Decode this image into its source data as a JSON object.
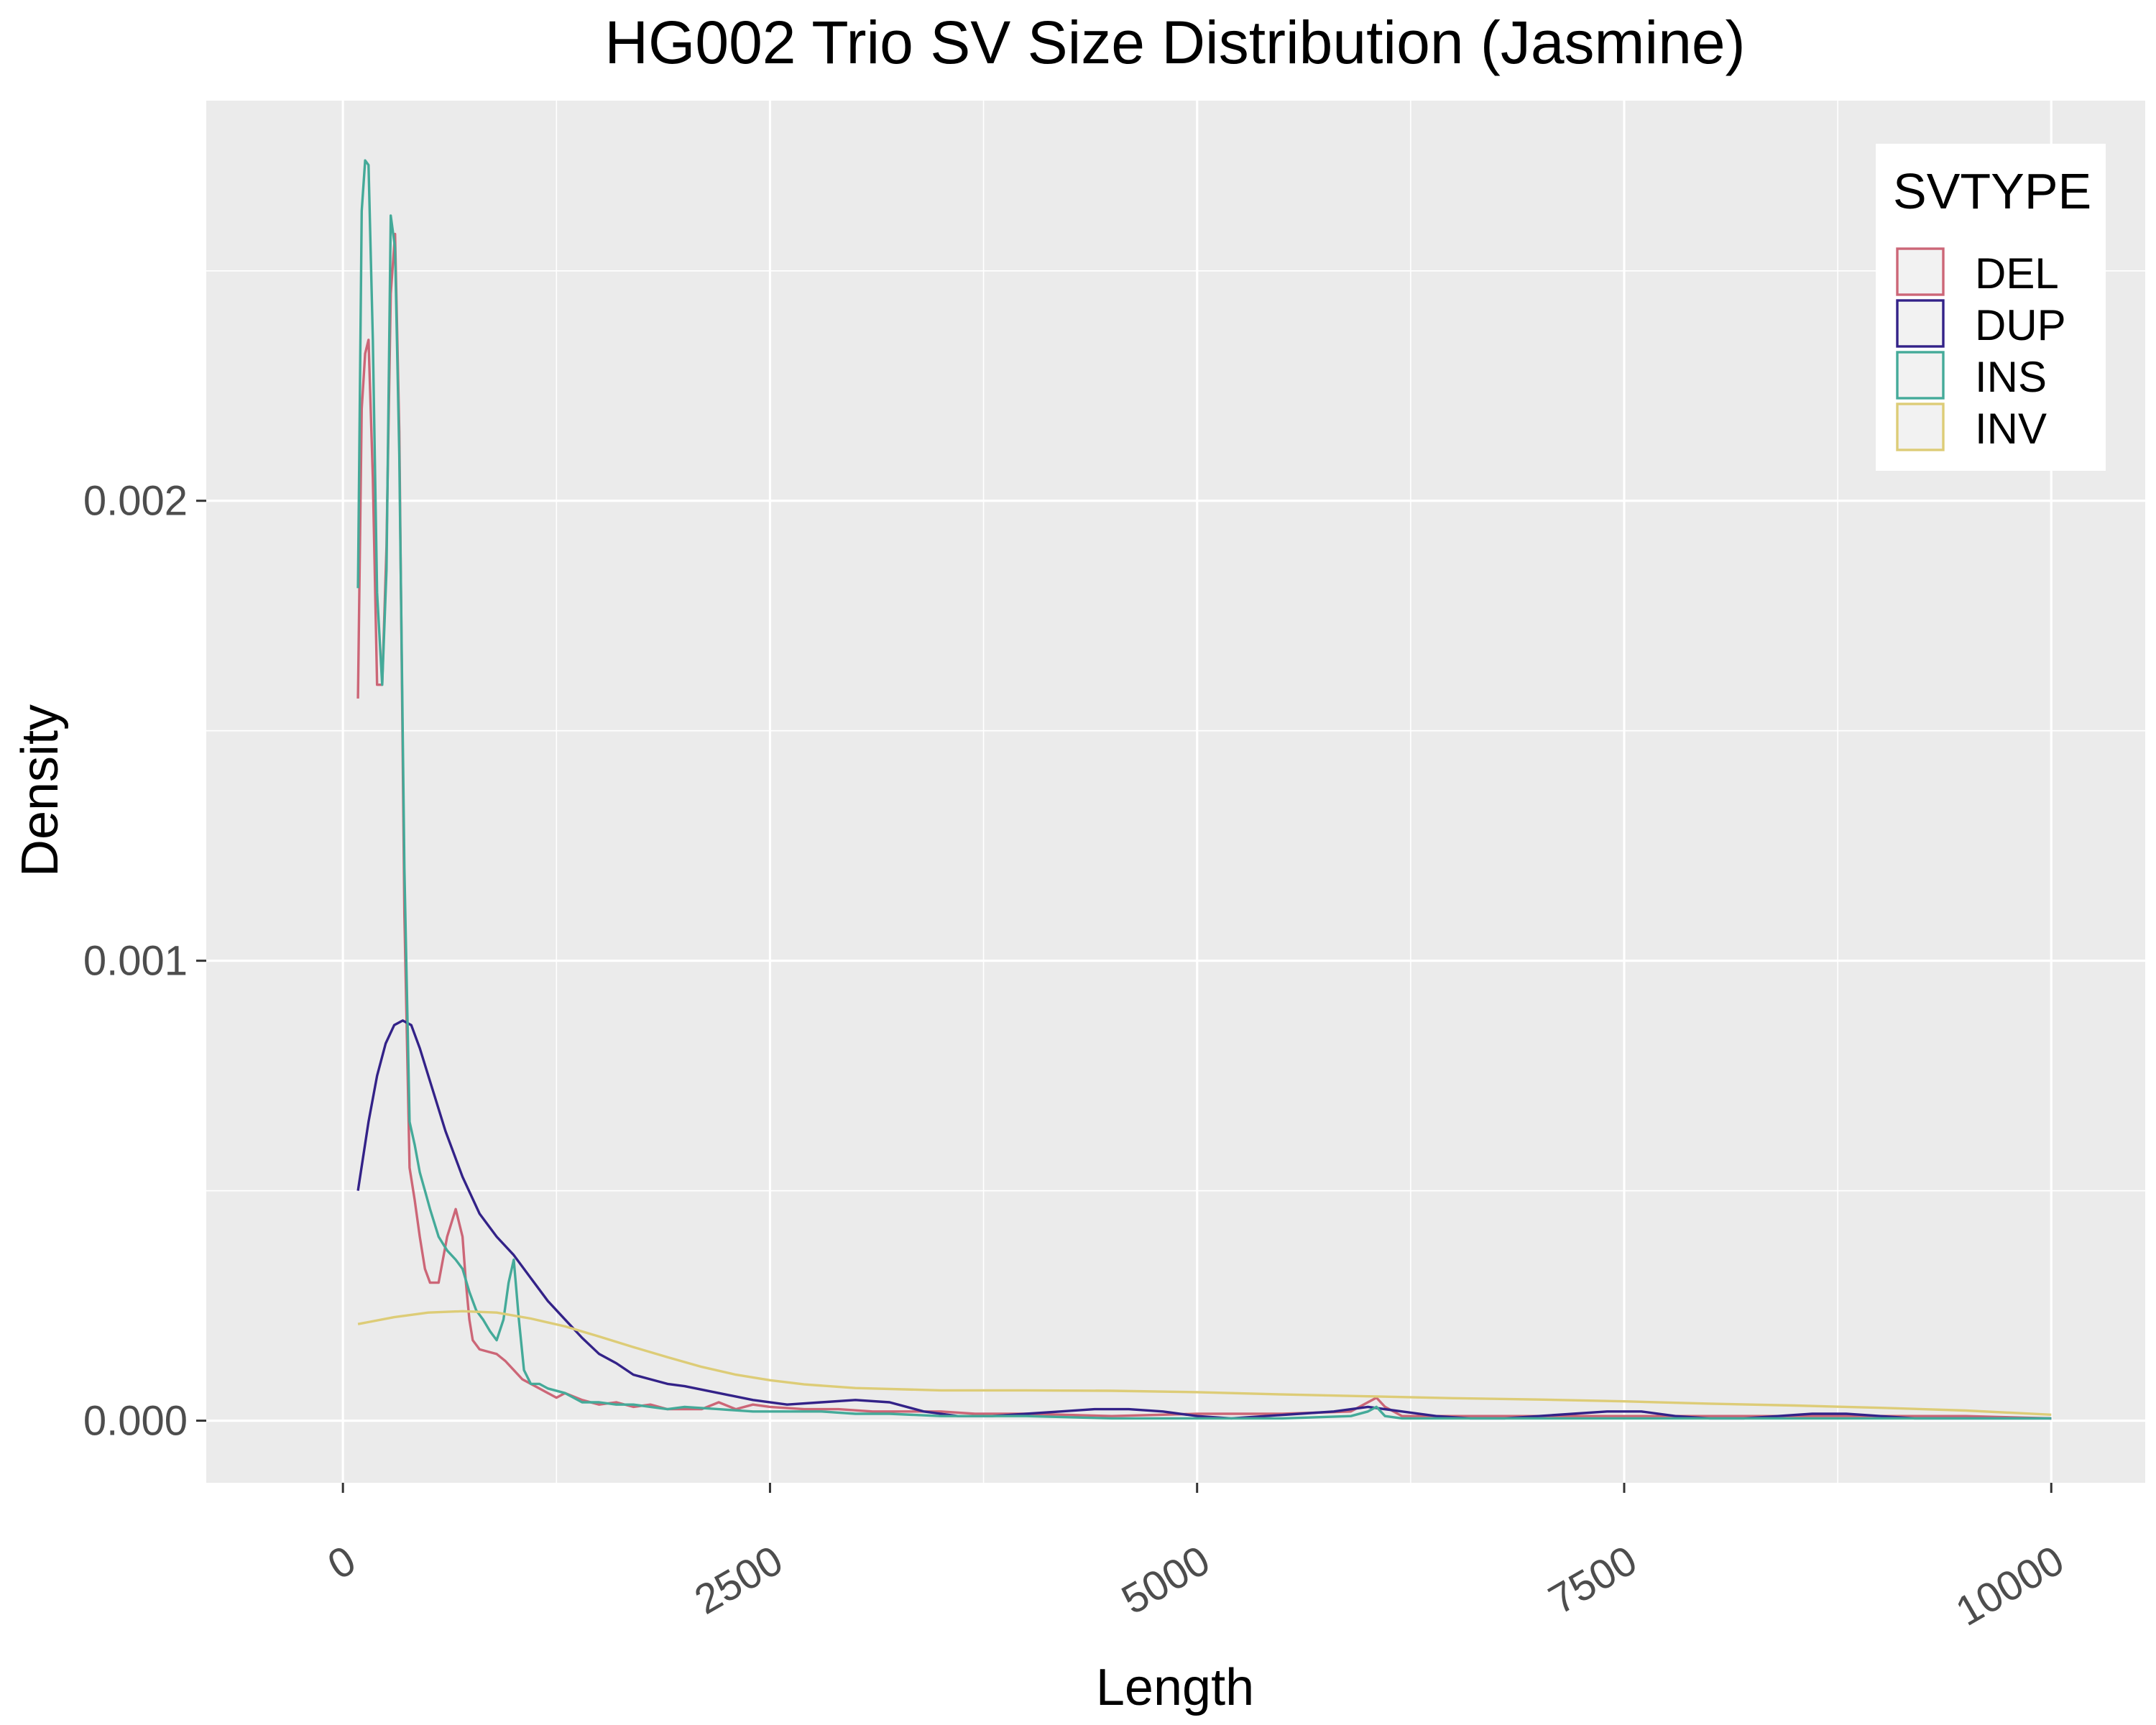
{
  "chart_data": {
    "type": "line",
    "title": "HG002 Trio SV Size Distribution (Jasmine)",
    "xlabel": "Length",
    "ylabel": "Density",
    "xlim": [
      -800,
      10550
    ],
    "ylim": [
      -0.000135,
      0.00287
    ],
    "x_ticks": [
      0,
      2500,
      5000,
      7500,
      10000
    ],
    "x_tick_labels": [
      "0",
      "2500",
      "5000",
      "7500",
      "10000"
    ],
    "y_ticks": [
      0.0,
      0.001,
      0.002
    ],
    "y_tick_labels": [
      "0.000",
      "0.001",
      "0.002"
    ],
    "grid": true,
    "legend": {
      "title": "SVTYPE",
      "position": "top-right"
    },
    "series": [
      {
        "name": "DEL",
        "color": "#cc6677",
        "x": [
          88,
          110,
          130,
          150,
          175,
          200,
          230,
          255,
          280,
          305,
          330,
          360,
          390,
          420,
          450,
          480,
          510,
          560,
          610,
          660,
          700,
          720,
          740,
          760,
          800,
          850,
          900,
          950,
          1000,
          1050,
          1100,
          1150,
          1200,
          1250,
          1300,
          1400,
          1500,
          1600,
          1700,
          1800,
          1900,
          2000,
          2100,
          2200,
          2300,
          2400,
          2500,
          2700,
          2900,
          3100,
          3300,
          3500,
          3700,
          4000,
          4500,
          5000,
          5500,
          5900,
          6000,
          6050,
          6100,
          6200,
          6500,
          7000,
          7500,
          8000,
          8500,
          9000,
          9500,
          10000
        ],
        "y": [
          0.00157,
          0.0022,
          0.00232,
          0.00235,
          0.00205,
          0.0016,
          0.0016,
          0.0019,
          0.00245,
          0.00258,
          0.00215,
          0.0011,
          0.00055,
          0.00048,
          0.0004,
          0.00033,
          0.0003,
          0.0003,
          0.0004,
          0.00046,
          0.0004,
          0.0003,
          0.00022,
          0.000175,
          0.000155,
          0.00015,
          0.000145,
          0.00013,
          0.00011,
          9e-05,
          8e-05,
          7e-05,
          6e-05,
          5e-05,
          6e-05,
          4.5e-05,
          3.5e-05,
          4e-05,
          3e-05,
          3.5e-05,
          2.5e-05,
          2.5e-05,
          2.5e-05,
          4e-05,
          2.5e-05,
          3.5e-05,
          3e-05,
          2.5e-05,
          2.5e-05,
          2e-05,
          2e-05,
          2e-05,
          1.5e-05,
          1.5e-05,
          1e-05,
          1.5e-05,
          1.5e-05,
          2e-05,
          4e-05,
          5e-05,
          3e-05,
          1e-05,
          1e-05,
          1e-05,
          1e-05,
          1e-05,
          1e-05,
          1e-05,
          1e-05,
          5e-06
        ]
      },
      {
        "name": "DUP",
        "color": "#332288",
        "x": [
          88,
          150,
          200,
          250,
          300,
          350,
          400,
          450,
          500,
          600,
          700,
          800,
          900,
          1000,
          1100,
          1200,
          1300,
          1400,
          1500,
          1600,
          1700,
          1800,
          1900,
          2000,
          2200,
          2400,
          2600,
          2800,
          3000,
          3200,
          3400,
          3600,
          3800,
          4000,
          4200,
          4400,
          4600,
          4800,
          5000,
          5200,
          5400,
          5600,
          5800,
          6000,
          6200,
          6400,
          6600,
          6800,
          7000,
          7200,
          7400,
          7600,
          7800,
          8000,
          8200,
          8400,
          8600,
          8800,
          9000,
          9200,
          9400,
          9600,
          9800,
          10000
        ],
        "y": [
          0.0005,
          0.00065,
          0.00075,
          0.00082,
          0.00086,
          0.00087,
          0.00086,
          0.00081,
          0.00075,
          0.00063,
          0.00053,
          0.00045,
          0.0004,
          0.00036,
          0.00031,
          0.00026,
          0.00022,
          0.00018,
          0.000145,
          0.000125,
          0.0001,
          9e-05,
          8e-05,
          7.5e-05,
          6e-05,
          4.5e-05,
          3.5e-05,
          4e-05,
          4.5e-05,
          4e-05,
          2e-05,
          1e-05,
          1e-05,
          1.5e-05,
          2e-05,
          2.5e-05,
          2.5e-05,
          2e-05,
          1e-05,
          5e-06,
          1e-05,
          1.5e-05,
          2e-05,
          3e-05,
          2e-05,
          1e-05,
          5e-06,
          5e-06,
          1e-05,
          1.5e-05,
          2e-05,
          2e-05,
          1e-05,
          5e-06,
          5e-06,
          1e-05,
          1.5e-05,
          1.5e-05,
          1e-05,
          5e-06,
          5e-06,
          5e-06,
          5e-06,
          5e-06
        ]
      },
      {
        "name": "INS",
        "color": "#44aa99",
        "x": [
          88,
          110,
          130,
          150,
          175,
          200,
          230,
          255,
          280,
          305,
          330,
          360,
          390,
          420,
          450,
          480,
          510,
          560,
          610,
          660,
          700,
          740,
          780,
          820,
          860,
          900,
          940,
          970,
          1000,
          1030,
          1060,
          1100,
          1150,
          1200,
          1300,
          1400,
          1500,
          1600,
          1700,
          1800,
          1900,
          2000,
          2200,
          2400,
          2600,
          2800,
          3000,
          3200,
          3500,
          4000,
          4500,
          5000,
          5500,
          5900,
          6000,
          6050,
          6100,
          6200,
          7000,
          8000,
          9000,
          10000
        ],
        "y": [
          0.00181,
          0.00263,
          0.00274,
          0.00273,
          0.00235,
          0.0018,
          0.0016,
          0.00185,
          0.00262,
          0.00255,
          0.0021,
          0.0012,
          0.00065,
          0.0006,
          0.00054,
          0.0005,
          0.00046,
          0.0004,
          0.00037,
          0.00035,
          0.00033,
          0.00028,
          0.00024,
          0.00022,
          0.000195,
          0.000175,
          0.00022,
          0.0003,
          0.00035,
          0.00022,
          0.00011,
          8e-05,
          8e-05,
          7e-05,
          6e-05,
          4e-05,
          4e-05,
          3.5e-05,
          3.5e-05,
          3e-05,
          2.5e-05,
          3e-05,
          2.5e-05,
          2e-05,
          2e-05,
          2e-05,
          1.5e-05,
          1.5e-05,
          1e-05,
          1e-05,
          5e-06,
          5e-06,
          5e-06,
          1e-05,
          2e-05,
          3e-05,
          1e-05,
          5e-06,
          5e-06,
          5e-06,
          5e-06,
          5e-06
        ]
      },
      {
        "name": "INV",
        "color": "#ddcc77",
        "x": [
          88,
          300,
          500,
          700,
          900,
          1100,
          1300,
          1500,
          1700,
          1900,
          2100,
          2300,
          2500,
          2700,
          3000,
          3500,
          4000,
          4500,
          5000,
          5500,
          6000,
          6500,
          7000,
          7500,
          8000,
          8500,
          9000,
          9500,
          10000
        ],
        "y": [
          0.00021,
          0.000225,
          0.000235,
          0.000238,
          0.000235,
          0.000222,
          0.000205,
          0.000183,
          0.00016,
          0.000138,
          0.000117,
          0.0001,
          8.8e-05,
          7.9e-05,
          7.1e-05,
          6.6e-05,
          6.6e-05,
          6.5e-05,
          6.2e-05,
          5.7e-05,
          5.3e-05,
          4.9e-05,
          4.6e-05,
          4.2e-05,
          3.7e-05,
          3.3e-05,
          2.8e-05,
          2.2e-05,
          1.3e-05
        ]
      }
    ]
  }
}
